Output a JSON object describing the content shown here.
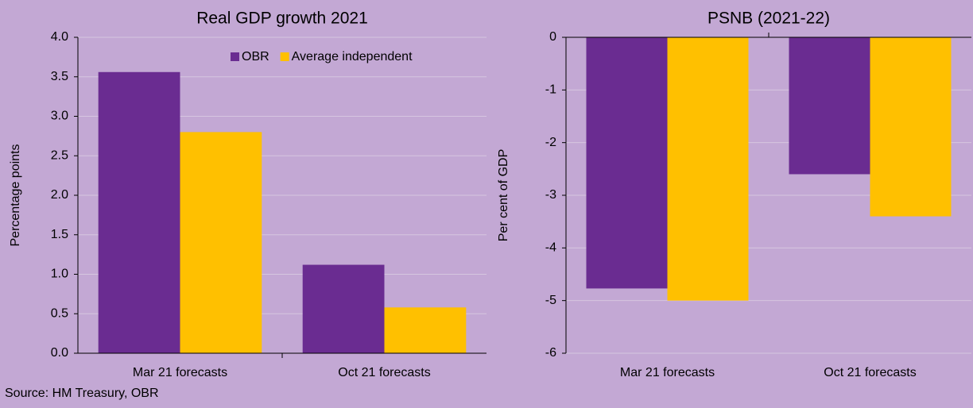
{
  "chart_data": [
    {
      "type": "bar",
      "title": "Real GDP growth 2021",
      "y_label": "Percentage points",
      "categories": [
        "Mar 21 forecasts",
        "Oct 21 forecasts"
      ],
      "series": [
        {
          "name": "OBR",
          "color": "#6a2c91",
          "values": [
            3.56,
            1.12
          ]
        },
        {
          "name": "Average independent",
          "color": "#ffc000",
          "values": [
            2.8,
            0.58
          ]
        }
      ],
      "ylim": [
        0,
        4
      ],
      "yticks": [
        {
          "value": 0,
          "label": "0.0"
        },
        0.5,
        {
          "value": 1,
          "label": "1.0"
        },
        1.5,
        {
          "value": 2,
          "label": "2.0"
        },
        2.5,
        {
          "value": 3,
          "label": "3.0"
        },
        3.5,
        {
          "value": 4,
          "label": "4.0"
        }
      ],
      "grid": true,
      "legend": "upper right"
    },
    {
      "type": "bar",
      "title": "PSNB (2021-22)",
      "y_label": "Per cent of GDP",
      "categories": [
        "Mar 21 forecasts",
        "Oct 21 forecasts"
      ],
      "series": [
        {
          "name": "OBR",
          "color": "#6a2c91",
          "values": [
            -4.77,
            -2.6
          ]
        },
        {
          "name": "Average independent",
          "color": "#ffc000",
          "values": [
            -5.0,
            -3.4
          ]
        }
      ],
      "ylim": [
        -6,
        0
      ],
      "yticks": [
        -6,
        -5,
        -4,
        -3,
        -2,
        -1,
        0
      ],
      "grid": true
    }
  ],
  "source": "Source: HM Treasury, OBR"
}
